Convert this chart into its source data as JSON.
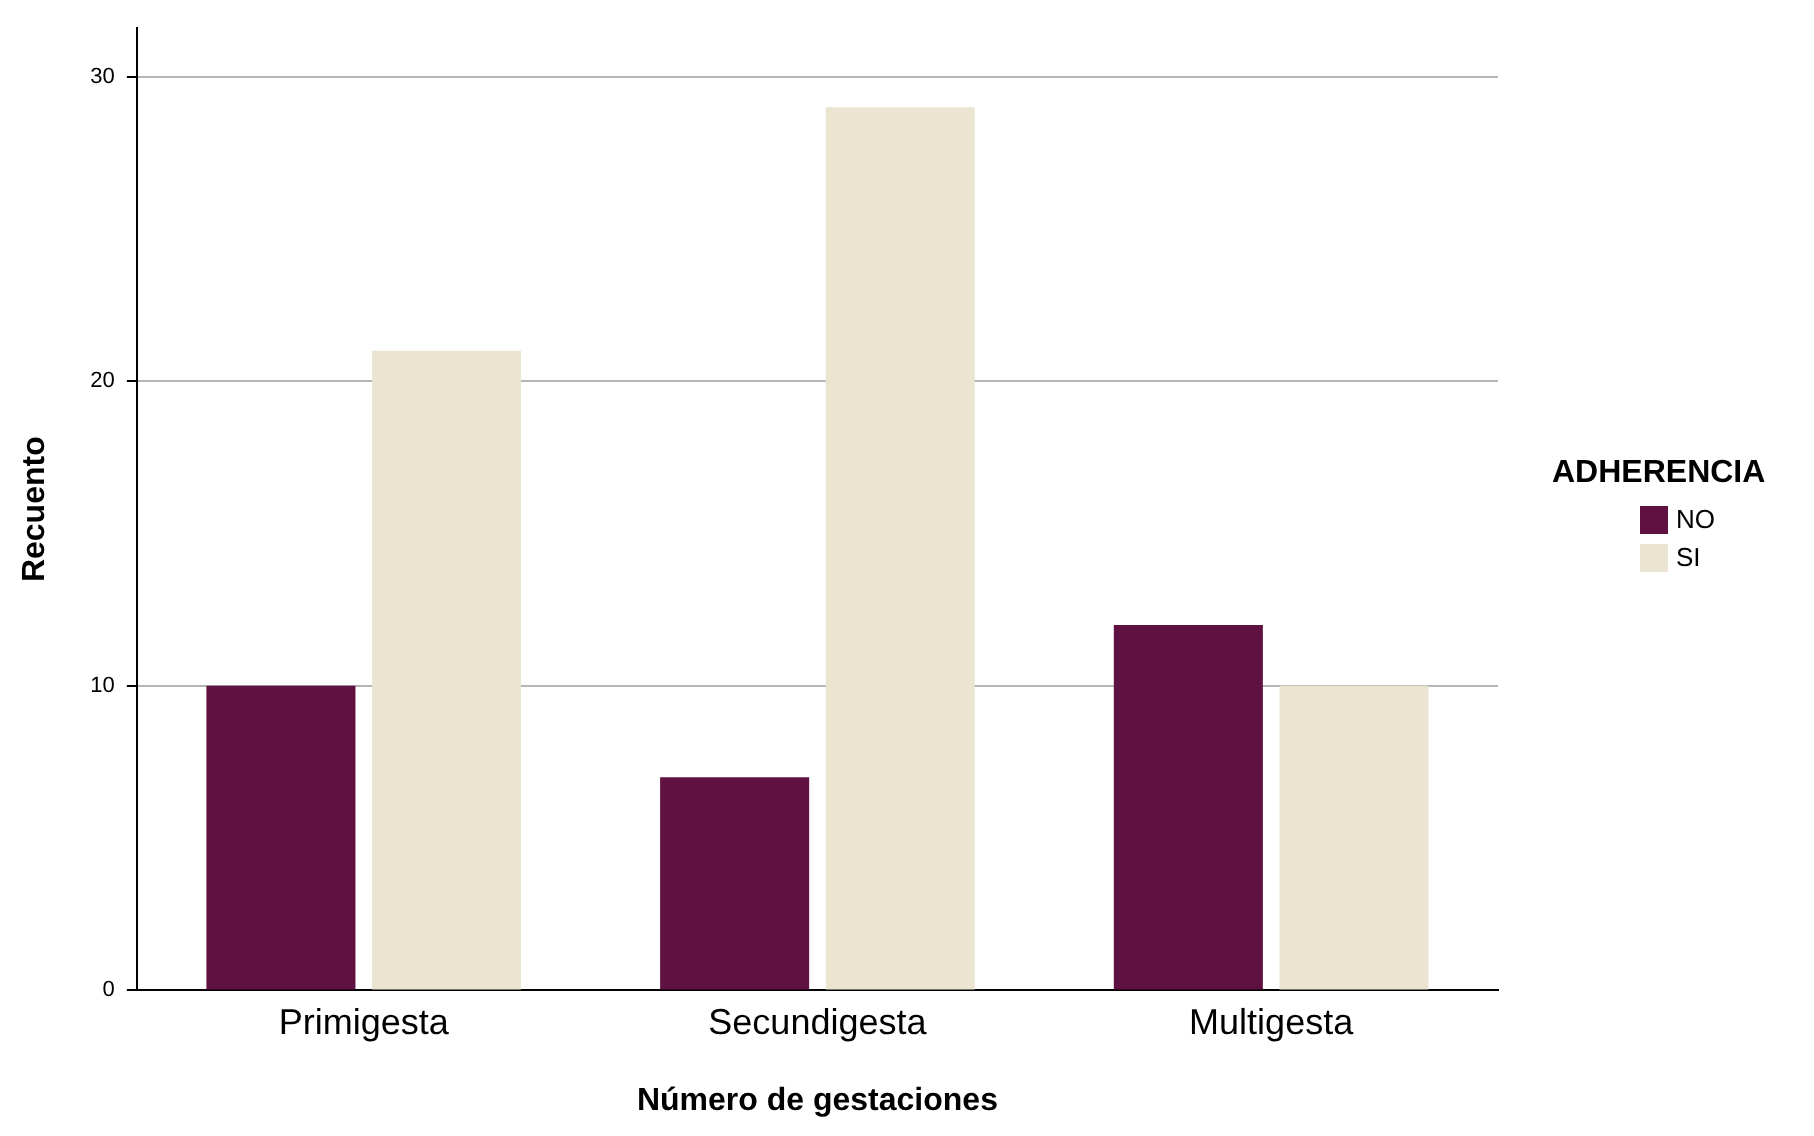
{
  "chart_data": {
    "type": "bar",
    "xlabel": "Número de gestaciones",
    "ylabel": "Recuento",
    "legend_title": "ADHERENCIA",
    "categories": [
      "Primigesta",
      "Secundigesta",
      "Multigesta"
    ],
    "series": [
      {
        "name": "NO",
        "color": "#5f1241",
        "values": [
          10,
          7,
          12
        ]
      },
      {
        "name": "SI",
        "color": "#ebe4d0",
        "values": [
          21,
          29,
          10
        ]
      }
    ],
    "ylim": [
      0,
      31.6
    ],
    "yticks": [
      0,
      10,
      20,
      30
    ],
    "grid": "y",
    "legend": "right"
  }
}
